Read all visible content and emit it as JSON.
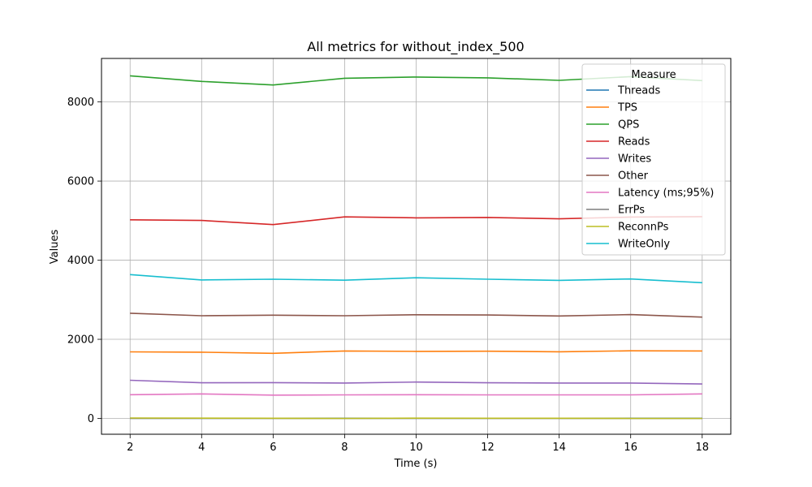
{
  "chart_data": {
    "type": "line",
    "title": "All metrics for without_index_500",
    "xlabel": "Time (s)",
    "ylabel": "Values",
    "x": [
      2,
      4,
      6,
      8,
      10,
      12,
      14,
      16,
      18
    ],
    "xlim": [
      1.2,
      18.8
    ],
    "ylim": [
      -400,
      9100
    ],
    "xticks": [
      2,
      4,
      6,
      8,
      10,
      12,
      14,
      16,
      18
    ],
    "yticks": [
      0,
      2000,
      4000,
      6000,
      8000
    ],
    "grid": true,
    "legend_title": "Measure",
    "legend_position": "top-right",
    "series": [
      {
        "name": "Threads",
        "color": "#1f77b4",
        "values": [
          4,
          4,
          4,
          4,
          4,
          4,
          4,
          4,
          4
        ]
      },
      {
        "name": "TPS",
        "color": "#ff7f0e",
        "values": [
          1683,
          1675,
          1645,
          1705,
          1695,
          1700,
          1685,
          1710,
          1705
        ]
      },
      {
        "name": "QPS",
        "color": "#2ca02c",
        "values": [
          8660,
          8520,
          8430,
          8600,
          8630,
          8610,
          8545,
          8640,
          8540
        ]
      },
      {
        "name": "Reads",
        "color": "#d62728",
        "values": [
          5020,
          5005,
          4900,
          5095,
          5070,
          5080,
          5045,
          5090,
          5100
        ]
      },
      {
        "name": "Writes",
        "color": "#9467bd",
        "values": [
          965,
          900,
          905,
          895,
          920,
          900,
          895,
          895,
          870
        ]
      },
      {
        "name": "Other",
        "color": "#8c564b",
        "values": [
          2660,
          2595,
          2610,
          2595,
          2620,
          2615,
          2590,
          2625,
          2560
        ]
      },
      {
        "name": "Latency (ms;95%)",
        "color": "#e377c2",
        "values": [
          600,
          620,
          590,
          595,
          600,
          595,
          595,
          595,
          620
        ]
      },
      {
        "name": "ErrPs",
        "color": "#7f7f7f",
        "values": [
          0,
          0,
          0,
          0,
          0,
          0,
          0,
          0,
          0
        ]
      },
      {
        "name": "ReconnPs",
        "color": "#bcbd22",
        "values": [
          10,
          6,
          4,
          0,
          6,
          4,
          4,
          0,
          0
        ]
      },
      {
        "name": "WriteOnly",
        "color": "#17becf",
        "values": [
          3635,
          3500,
          3520,
          3495,
          3555,
          3520,
          3490,
          3525,
          3430
        ]
      }
    ]
  }
}
